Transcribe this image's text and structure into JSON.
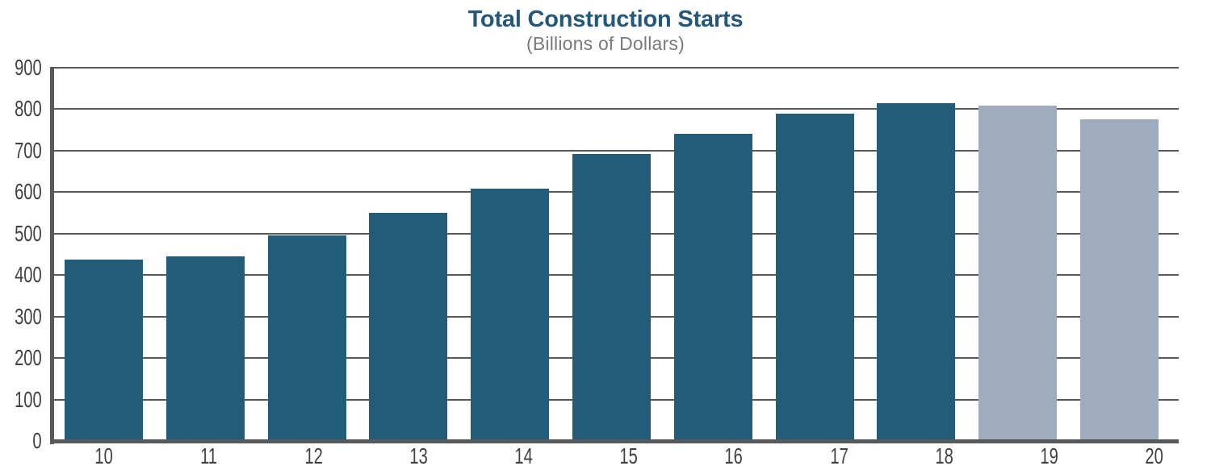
{
  "chart_data": {
    "type": "bar",
    "title": "Total Construction Starts",
    "subtitle": "(Billions of Dollars)",
    "xlabel": "",
    "ylabel": "",
    "categories": [
      "10",
      "11",
      "12",
      "13",
      "14",
      "15",
      "16",
      "17",
      "18",
      "19",
      "20"
    ],
    "series": [
      {
        "name": "Total construction starts",
        "values": [
          437,
          445,
          496,
          550,
          608,
          692,
          740,
          790,
          815,
          808,
          776
        ]
      }
    ],
    "bar_types": [
      "actual",
      "actual",
      "actual",
      "actual",
      "actual",
      "actual",
      "actual",
      "actual",
      "actual",
      "forecast",
      "forecast"
    ],
    "ylim": [
      0,
      900
    ],
    "ytick_step": 100,
    "yticks": [
      0,
      100,
      200,
      300,
      400,
      500,
      600,
      700,
      800,
      900
    ],
    "grid": true,
    "legend": "none"
  },
  "colors": {
    "bar_actual": "#215C78",
    "bar_forecast": "#9EACBE",
    "title": "#23587B",
    "subtitle": "#797A7D",
    "axis": "#58595B",
    "gridline": "#58595B",
    "tick_label": "#414042"
  }
}
